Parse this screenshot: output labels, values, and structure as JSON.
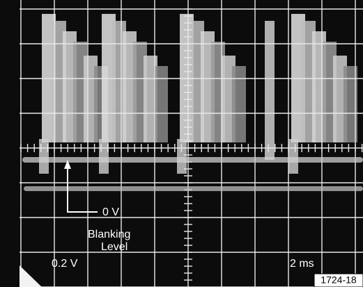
{
  "annotations": {
    "zero": "0 V",
    "blanking": "Blanking",
    "level": "Level"
  },
  "scale": {
    "volts": "0.2 V",
    "time": "2 ms"
  },
  "figure_id": "1724-18"
}
